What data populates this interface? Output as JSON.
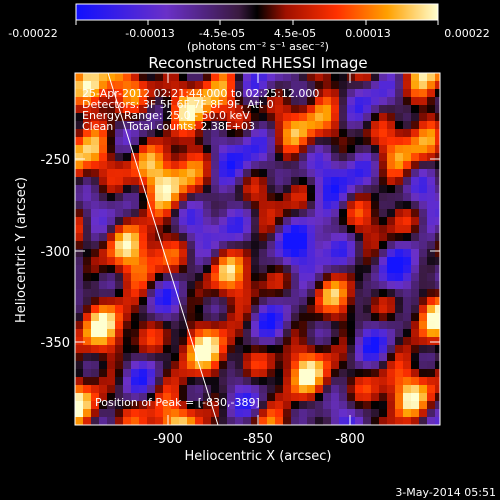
{
  "colorbar": {
    "tick_labels": [
      "-0.00022",
      "-0.00013",
      "-4.5e-05",
      "4.5e-05",
      "0.00013",
      "0.00022"
    ],
    "units": "(photons cm⁻² s⁻¹ asec⁻²)",
    "range": [
      -0.00022,
      0.00022
    ]
  },
  "title": "Reconstructed RHESSI Image",
  "info_lines": [
    "25-Apr-2012 02:21:44.000 to 02:25:12.000",
    "Detectors: 3F 5F 6F 7F 8F 9F, Att 0",
    "Energy Range: 25.0 - 50.0 keV",
    "Clean    Total counts: 2.38E+03"
  ],
  "peak_label": "Position of Peak = [-830,-389]",
  "axes": {
    "xlabel": "Heliocentric X (arcsec)",
    "ylabel": "Heliocentric Y (arcsec)",
    "x_ticks": [
      "-900",
      "-850",
      "-800"
    ],
    "y_ticks": [
      "-250",
      "-300",
      "-350"
    ],
    "xlim": [
      -948,
      -789
    ],
    "ylim": [
      -398,
      -212
    ]
  },
  "footer_timestamp": "3-May-2014 05:51"
}
